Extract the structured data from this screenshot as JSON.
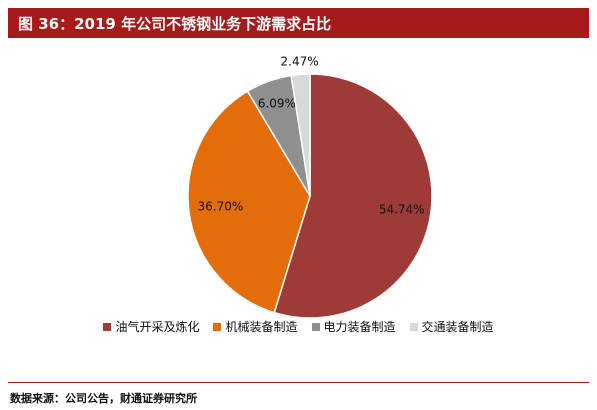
{
  "header": {
    "title": "图 36：2019 年公司不锈钢业务下游需求占比"
  },
  "chart_data": {
    "type": "pie",
    "categories": [
      "油气开采及炼化",
      "机械装备制造",
      "电力装备制造",
      "交通装备制造"
    ],
    "values": [
      54.74,
      36.7,
      6.09,
      2.47
    ],
    "labels": [
      "54.74%",
      "36.70%",
      "6.09%",
      "2.47%"
    ],
    "colors": [
      "#9e3a38",
      "#e56c0a",
      "#8f8f8f",
      "#d9d9d9"
    ],
    "start_angle": "12-o-clock",
    "direction": "clockwise",
    "legend_position": "bottom"
  },
  "footer": {
    "source": "数据来源：公司公告，财通证券研究所"
  }
}
